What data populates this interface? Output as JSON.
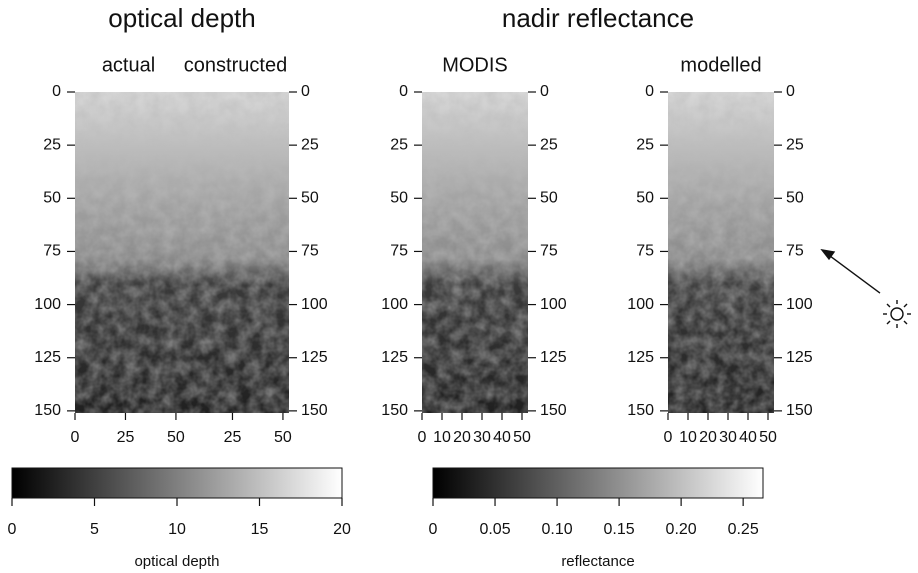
{
  "groups": [
    {
      "title": "optical depth",
      "panels": [
        {
          "title": "actual",
          "xlim": [
            0,
            53
          ],
          "ylim": [
            0,
            151
          ],
          "xticks": [
            0,
            25,
            50
          ],
          "yticks": [
            0,
            25,
            50,
            75,
            100,
            125,
            150
          ],
          "ytick_sides": [
            "left"
          ]
        },
        {
          "title": "constructed",
          "xlim": [
            0,
            53
          ],
          "ylim": [
            0,
            151
          ],
          "xticks": [
            25,
            50
          ],
          "yticks": [
            0,
            25,
            50,
            75,
            100,
            125,
            150
          ],
          "ytick_sides": [
            "right"
          ]
        }
      ],
      "colorbar": {
        "label": "optical depth",
        "lim": [
          0,
          20
        ],
        "ticks": [
          0,
          5,
          10,
          15,
          20
        ]
      }
    },
    {
      "title": "nadir reflectance",
      "panels": [
        {
          "title": "MODIS",
          "xlim": [
            0,
            53
          ],
          "ylim": [
            0,
            151
          ],
          "xticks": [
            0,
            10,
            20,
            30,
            40,
            50
          ],
          "yticks": [
            0,
            25,
            50,
            75,
            100,
            125,
            150
          ],
          "ytick_sides": [
            "left",
            "right"
          ]
        },
        {
          "title": "modelled",
          "xlim": [
            0,
            53
          ],
          "ylim": [
            0,
            151
          ],
          "xticks": [
            0,
            10,
            20,
            30,
            40,
            50
          ],
          "yticks": [
            0,
            25,
            50,
            75,
            100,
            125,
            150
          ],
          "ytick_sides": [
            "left",
            "right"
          ]
        }
      ],
      "colorbar": {
        "label": "reflectance",
        "lim": [
          0,
          0.266
        ],
        "ticks": [
          0,
          0.05,
          {
            "value": 0.1,
            "label": "0.10"
          },
          0.15,
          {
            "value": 0.2,
            "label": "0.20"
          },
          0.25
        ]
      }
    }
  ]
}
